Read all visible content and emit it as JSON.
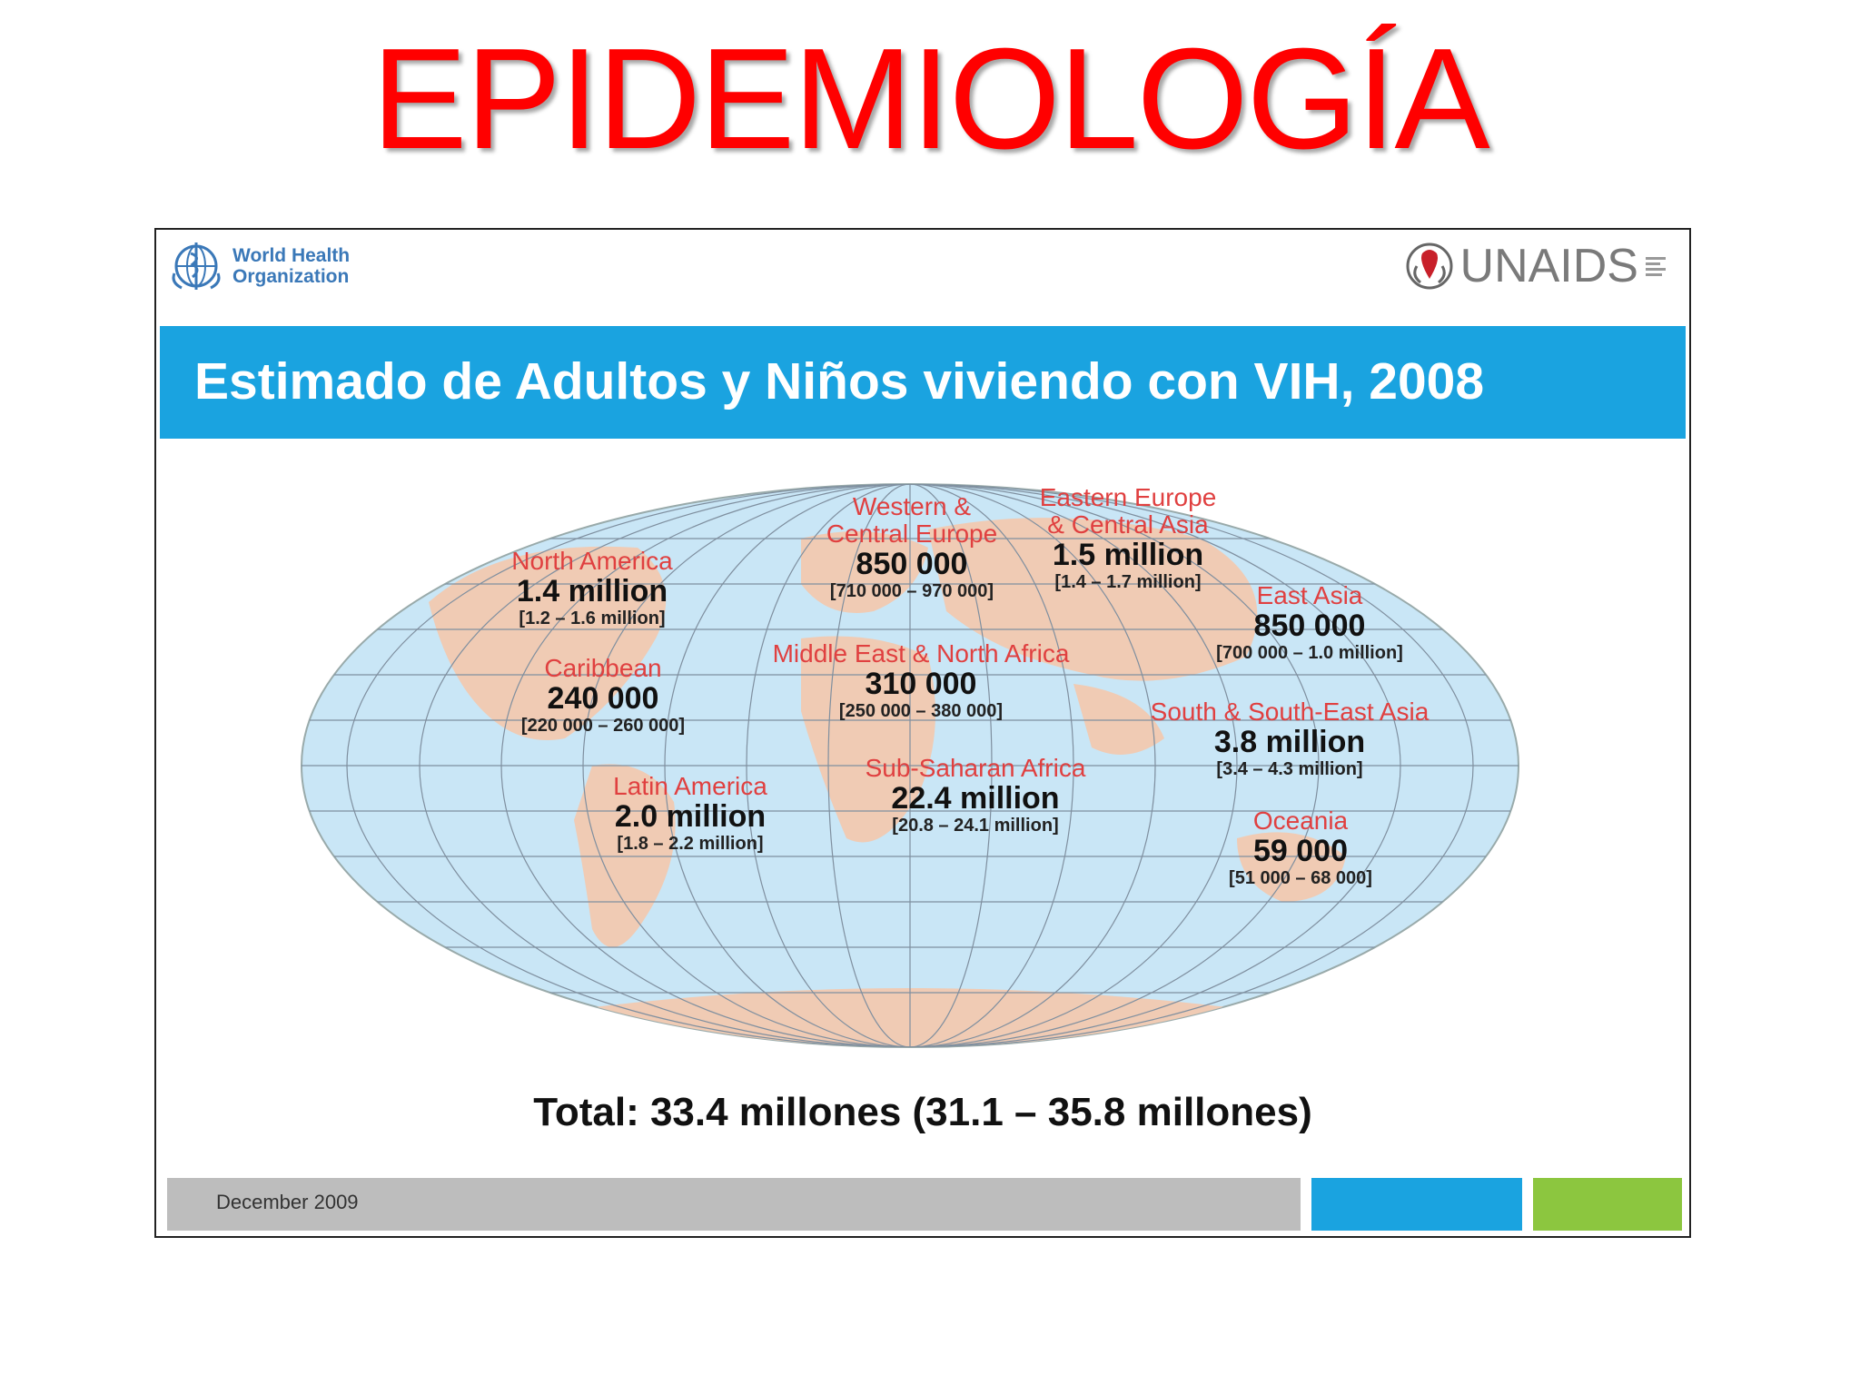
{
  "page": {
    "title": "EPIDEMIOLOGÍA"
  },
  "slide": {
    "who_logo": {
      "line1": "World Health",
      "line2": "Organization",
      "icon": "who-emblem-icon"
    },
    "unaids_logo": {
      "text": "UNAIDS",
      "icon": "unaids-emblem-icon"
    },
    "banner_title": "Estimado de Adultos y Niños viviendo con VIH, 2008",
    "map": {
      "regions": [
        {
          "name": "North America",
          "value": "1.4 million",
          "range": "[1.2 – 1.6 million]"
        },
        {
          "name": "Caribbean",
          "value": "240 000",
          "range": "[220 000 – 260 000]"
        },
        {
          "name": "Latin America",
          "value": "2.0 million",
          "range": "[1.8 – 2.2 million]"
        },
        {
          "name_line1": "Western &",
          "name_line2": "Central Europe",
          "value": "850 000",
          "range": "[710 000 – 970 000]"
        },
        {
          "name_line1": "Eastern Europe",
          "name_line2": "& Central Asia",
          "value": "1.5 million",
          "range": "[1.4 – 1.7 million]"
        },
        {
          "name": "Middle East & North Africa",
          "value": "310 000",
          "range": "[250 000 – 380 000]"
        },
        {
          "name": "Sub-Saharan Africa",
          "value": "22.4 million",
          "range": "[20.8 – 24.1 million]"
        },
        {
          "name": "East Asia",
          "value": "850 000",
          "range": "[700 000 – 1.0 million]"
        },
        {
          "name": "South & South-East Asia",
          "value": "3.8 million",
          "range": "[3.4 – 4.3 million]"
        },
        {
          "name": "Oceania",
          "value": "59 000",
          "range": "[51 000 – 68 000]"
        }
      ]
    },
    "total": "Total: 33.4 millones (31.1 – 35.8 millones)",
    "footer": {
      "date": "December 2009"
    },
    "colors": {
      "banner": "#1aa3e0",
      "footer_green": "#8cc63f",
      "title_red": "#ff0000",
      "region_name": "#e04040"
    }
  }
}
